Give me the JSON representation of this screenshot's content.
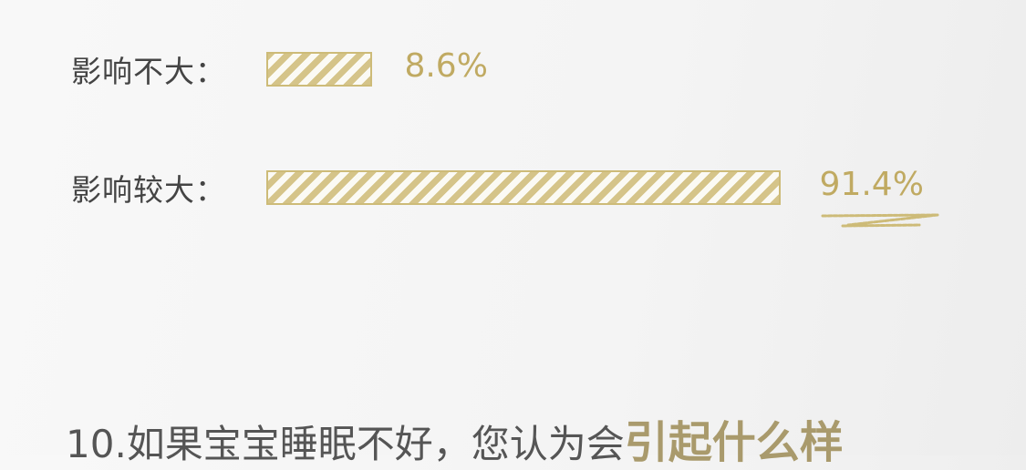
{
  "chart_data": {
    "type": "bar",
    "orientation": "horizontal",
    "categories": [
      "影响不大：",
      "影响较大："
    ],
    "values": [
      8.6,
      91.4
    ],
    "value_labels": [
      "8.6%",
      "91.4%"
    ],
    "unit": "%",
    "highlight": "影响较大：",
    "colors": {
      "bar": "#cdbb78",
      "label": "#c0aa62",
      "text": "#444444"
    }
  },
  "question": {
    "prefix": "10.如果宝宝睡眠不好，您认为会",
    "highlight": "引起什么样"
  }
}
